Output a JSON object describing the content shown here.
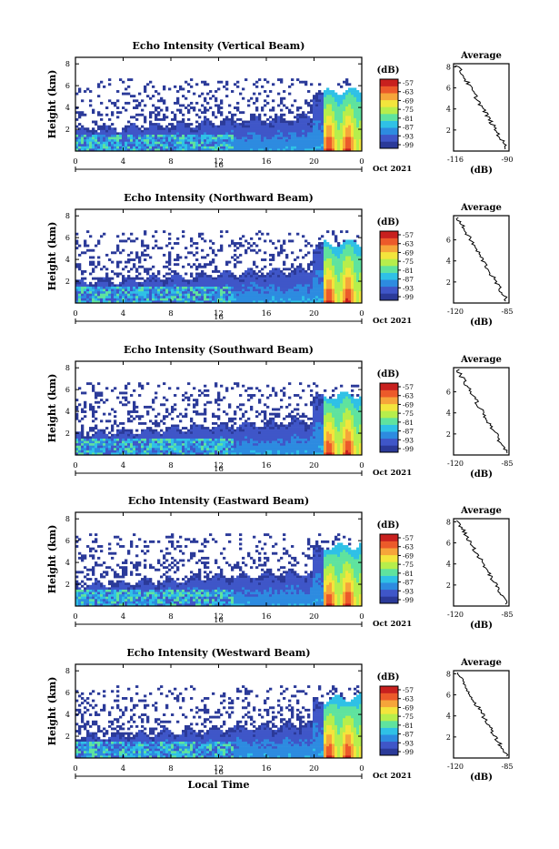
{
  "colorbar": {
    "unit": "(dB)",
    "ticks": [
      "-57",
      "-63",
      "-69",
      "-75",
      "-81",
      "-87",
      "-93",
      "-99"
    ],
    "colors": [
      "#2b3a99",
      "#3f56c8",
      "#2d8be0",
      "#2fc1e6",
      "#5fe39e",
      "#b6ee4c",
      "#f3e53c",
      "#f6a53a",
      "#ec5a2a",
      "#c8201e"
    ]
  },
  "chart_data": [
    {
      "type": "heatmap",
      "title": "Echo Intensity (Vertical Beam)",
      "ylabel": "Height (km)",
      "xlabel": "",
      "x_ticks": [
        "0",
        "4",
        "8",
        "12",
        "16",
        "20",
        "0"
      ],
      "y_ticks": [
        "8",
        "6",
        "4",
        "2"
      ],
      "date_mark": "16",
      "date_label": "Oct 2021",
      "xlim": [
        0,
        24
      ],
      "ylim": [
        0,
        8
      ],
      "average": {
        "title": "Average",
        "xlabel": "(dB)",
        "x_ticks": [
          "-116",
          "-90"
        ],
        "y_ticks": [
          "8",
          "6",
          "4",
          "2"
        ]
      }
    },
    {
      "type": "heatmap",
      "title": "Echo Intensity (Northward Beam)",
      "ylabel": "Height (km)",
      "xlabel": "",
      "x_ticks": [
        "0",
        "4",
        "8",
        "12",
        "16",
        "20",
        "0"
      ],
      "y_ticks": [
        "8",
        "6",
        "4",
        "2"
      ],
      "date_mark": "16",
      "date_label": "Oct 2021",
      "xlim": [
        0,
        24
      ],
      "ylim": [
        0,
        8
      ],
      "average": {
        "title": "Average",
        "xlabel": "(dB)",
        "x_ticks": [
          "-120",
          "-85"
        ],
        "y_ticks": [
          "6",
          "4",
          "2"
        ]
      }
    },
    {
      "type": "heatmap",
      "title": "Echo Intensity (Southward Beam)",
      "ylabel": "Height (km)",
      "xlabel": "",
      "x_ticks": [
        "0",
        "4",
        "8",
        "12",
        "16",
        "20",
        "0"
      ],
      "y_ticks": [
        "8",
        "6",
        "4",
        "2"
      ],
      "date_mark": "16",
      "date_label": "Oct 2021",
      "xlim": [
        0,
        24
      ],
      "ylim": [
        0,
        8
      ],
      "average": {
        "title": "Average",
        "xlabel": "(dB)",
        "x_ticks": [
          "-120",
          "-85"
        ],
        "y_ticks": [
          "6",
          "4",
          "2"
        ]
      }
    },
    {
      "type": "heatmap",
      "title": "Echo Intensity (Eastward Beam)",
      "ylabel": "Height (km)",
      "xlabel": "",
      "x_ticks": [
        "0",
        "4",
        "8",
        "12",
        "16",
        "20",
        "0"
      ],
      "y_ticks": [
        "8",
        "6",
        "4",
        "2"
      ],
      "date_mark": "16",
      "date_label": "Oct 2021",
      "xlim": [
        0,
        24
      ],
      "ylim": [
        0,
        8
      ],
      "average": {
        "title": "Average",
        "xlabel": "(dB)",
        "x_ticks": [
          "-120",
          "-85"
        ],
        "y_ticks": [
          "8",
          "6",
          "4",
          "2"
        ]
      }
    },
    {
      "type": "heatmap",
      "title": "Echo Intensity (Westward Beam)",
      "ylabel": "Height (km)",
      "xlabel": "Local Time",
      "x_ticks": [
        "0",
        "4",
        "8",
        "12",
        "16",
        "20",
        "0"
      ],
      "y_ticks": [
        "8",
        "6",
        "4",
        "2"
      ],
      "date_mark": "16",
      "date_label": "Oct 2021",
      "xlim": [
        0,
        24
      ],
      "ylim": [
        0,
        8
      ],
      "average": {
        "title": "Average",
        "xlabel": "(dB)",
        "x_ticks": [
          "-120",
          "-85"
        ],
        "y_ticks": [
          "8",
          "6",
          "4",
          "2"
        ]
      }
    }
  ]
}
